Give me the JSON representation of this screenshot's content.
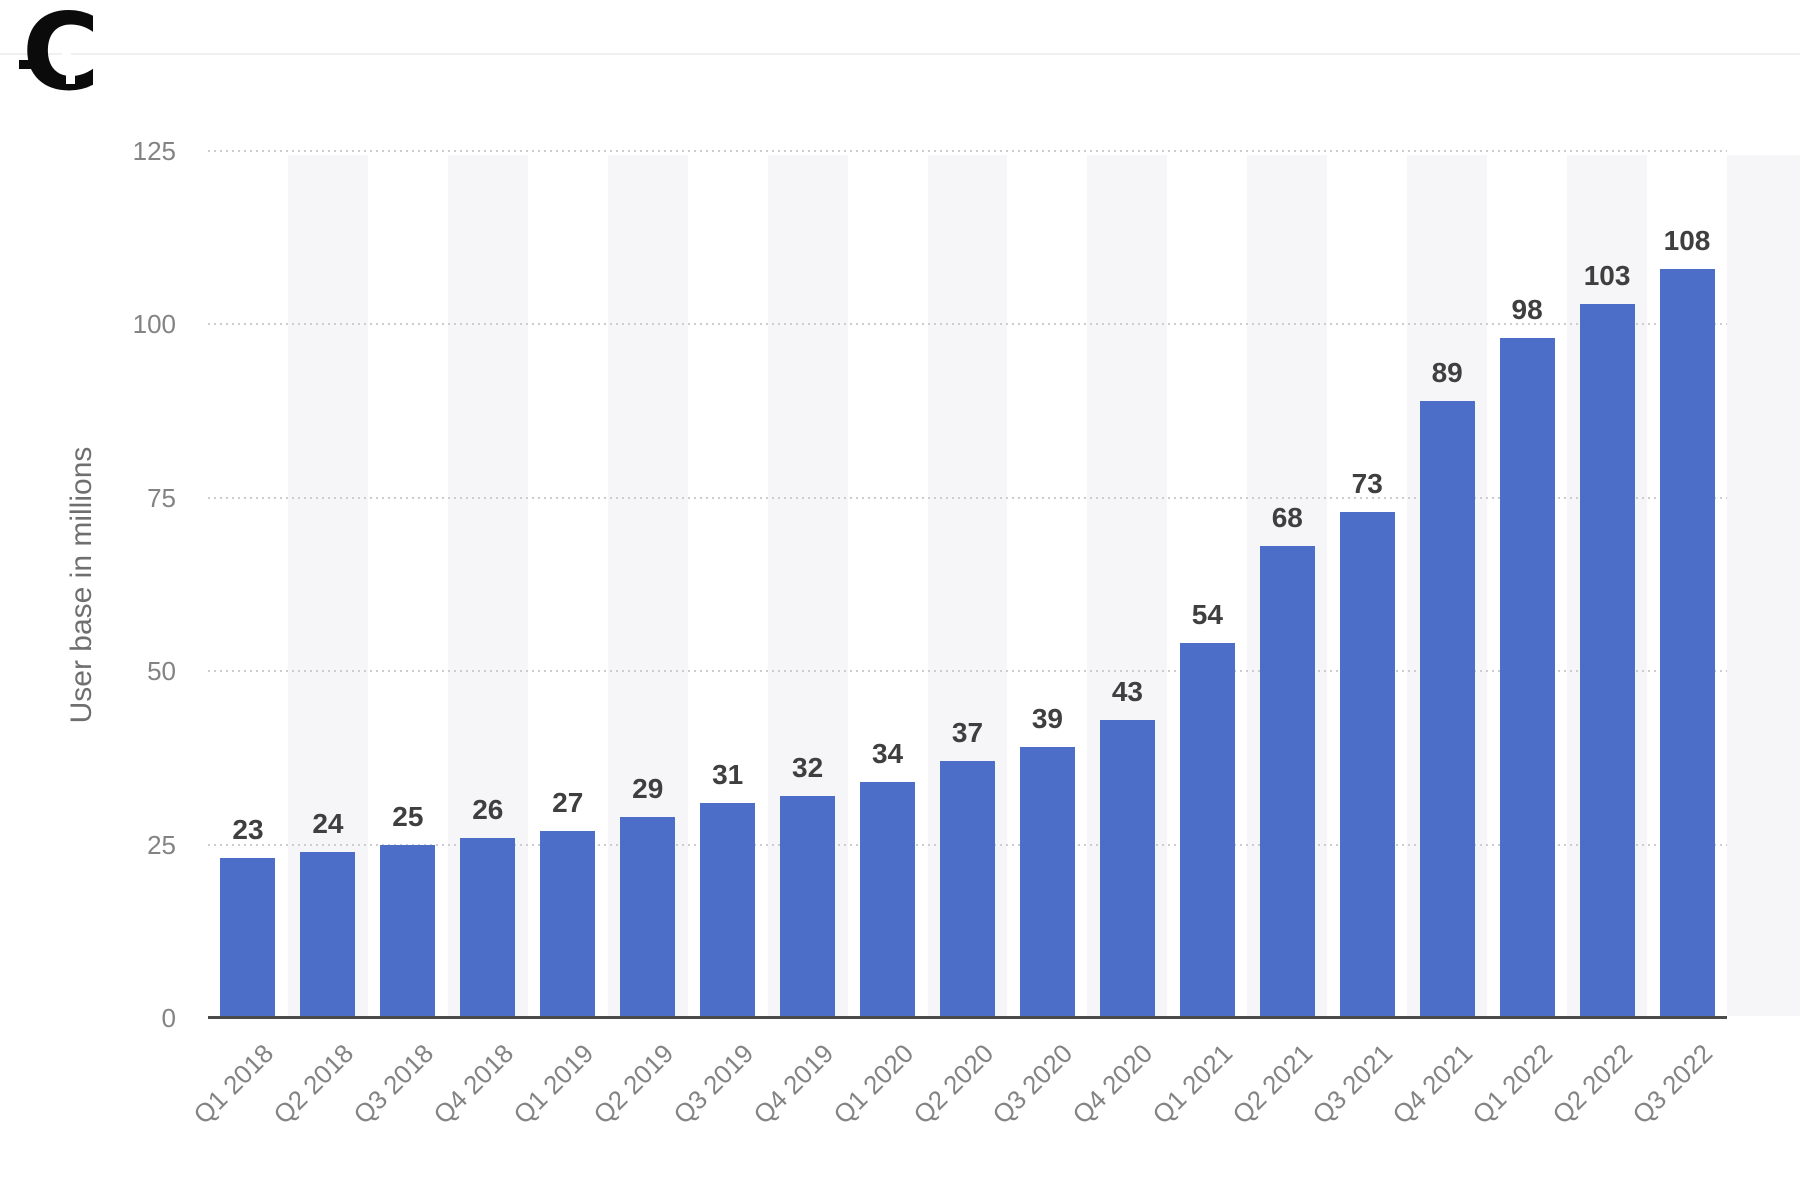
{
  "logo": {
    "glyph": "C",
    "color": "#0b0b0b"
  },
  "header": {
    "divider_color": "#f0f0f0"
  },
  "chart_data": {
    "type": "bar",
    "title": "",
    "xlabel": "",
    "ylabel": "User base in millions",
    "categories": [
      "Q1 2018",
      "Q2 2018",
      "Q3 2018",
      "Q4 2018",
      "Q1 2019",
      "Q2 2019",
      "Q3 2019",
      "Q4 2019",
      "Q1 2020",
      "Q2 2020",
      "Q3 2020",
      "Q4 2020",
      "Q1 2021",
      "Q2 2021",
      "Q3 2021",
      "Q4 2021",
      "Q1 2022",
      "Q2 2022",
      "Q3 2022"
    ],
    "values": [
      23,
      24,
      25,
      26,
      27,
      29,
      31,
      32,
      34,
      37,
      39,
      43,
      54,
      68,
      73,
      89,
      98,
      103,
      108
    ],
    "ylim": [
      0,
      125
    ],
    "yticks": [
      0,
      25,
      50,
      75,
      100,
      125
    ],
    "grid": "horizontal-dotted",
    "legend": "none",
    "data_labels": "above-bars",
    "colors": {
      "bar": "#4c6dc8",
      "band": "#f6f6f8",
      "grid": "#cdcdcd",
      "axis_line": "#4b4b4b",
      "tick_label": "#838383",
      "value_label": "#3f3f3f",
      "y_title": "#6f6f6f"
    }
  }
}
